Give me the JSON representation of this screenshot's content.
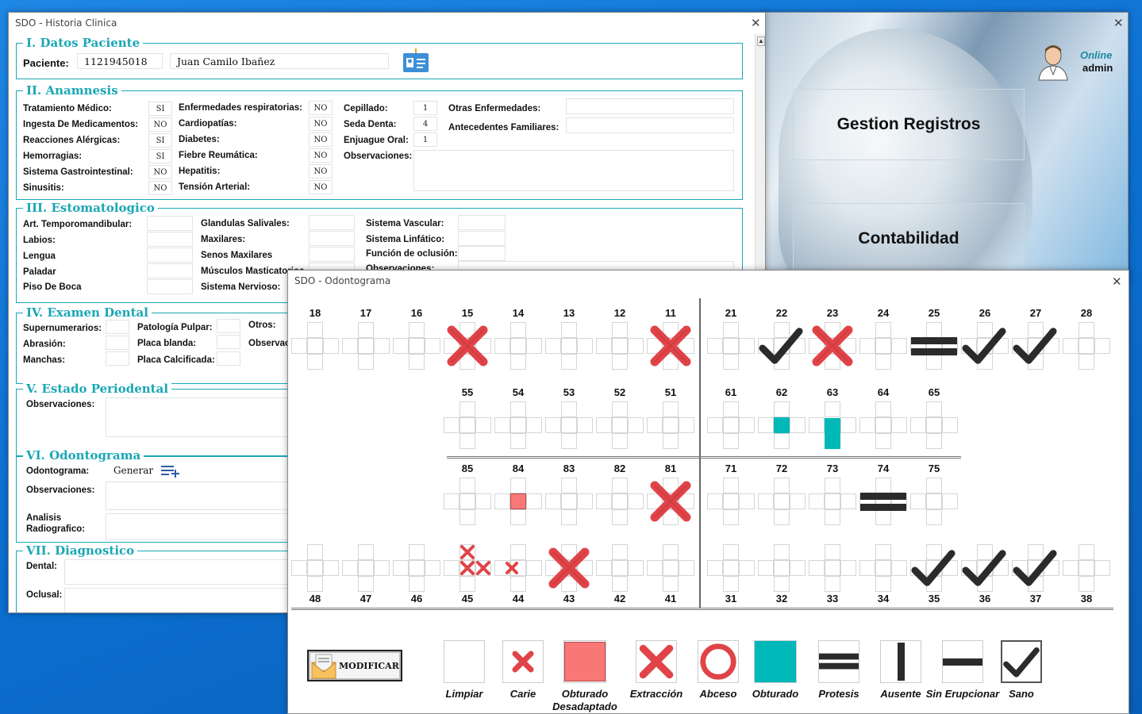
{
  "menu_window": {
    "close": "✕",
    "buttons": [
      "Gestion Registros",
      "Contabilidad"
    ],
    "status": "Online",
    "user": "admin"
  },
  "historia": {
    "title": "SDO - Historia Clinica",
    "close": "✕",
    "datos": {
      "legend": "I. Datos Paciente",
      "paciente_label": "Paciente:",
      "paciente_id": "1121945018",
      "paciente_nombre": "Juan Camilo Ibañez"
    },
    "anamnesis": {
      "legend": "II. Anamnesis",
      "col1": [
        {
          "label": "Tratamiento Médico:",
          "value": "SI"
        },
        {
          "label": "Ingesta De Medicamentos:",
          "value": "NO"
        },
        {
          "label": "Reacciones Alérgicas:",
          "value": "SI"
        },
        {
          "label": "Hemorragias:",
          "value": "SI"
        },
        {
          "label": "Sistema Gastrointestinal:",
          "value": "NO"
        },
        {
          "label": "Sinusitis:",
          "value": "NO"
        }
      ],
      "col2": [
        {
          "label": "Enfermedades respiratorias:",
          "value": "NO"
        },
        {
          "label": "Cardiopatías:",
          "value": "NO"
        },
        {
          "label": "Diabetes:",
          "value": "NO"
        },
        {
          "label": "Fiebre Reumática:",
          "value": "NO"
        },
        {
          "label": "Hepatitis:",
          "value": "NO"
        },
        {
          "label": "Tensión Arterial:",
          "value": "NO"
        }
      ],
      "col3": [
        {
          "label": "Cepillado:",
          "value": "1"
        },
        {
          "label": "Seda Denta:",
          "value": "4"
        },
        {
          "label": "Enjuague Oral:",
          "value": "1"
        }
      ],
      "observaciones": "Observaciones:",
      "otras": "Otras Enfermedades:",
      "antecedentes": "Antecedentes Familiares:"
    },
    "estomatologico": {
      "legend": "III. Estomatologico",
      "col1": [
        "Art. Temporomandibular:",
        "Labios:",
        "Lengua",
        "Paladar",
        "Piso De Boca"
      ],
      "col2": [
        "Glandulas Salivales:",
        "Maxilares:",
        "Senos Maxilares",
        "Músculos Masticatorios",
        "Sistema Nervioso:"
      ],
      "col3": [
        "Sistema Vascular:",
        "Sistema Linfático:",
        "Función de oclusión:",
        "Observaciones:"
      ]
    },
    "examen": {
      "legend": "IV. Examen Dental",
      "col1": [
        "Supernumerarios:",
        "Abrasión:",
        "Manchas:"
      ],
      "col2": [
        "Patología Pulpar:",
        "Placa blanda:",
        "Placa Calcificada:"
      ],
      "otros": "Otros:",
      "observ": "Observaciones:"
    },
    "periodental": {
      "legend": "V. Estado Periodental",
      "obs": "Observaciones:"
    },
    "odontograma": {
      "legend": "VI. Odontograma",
      "label": "Odontograma:",
      "generar": "Generar",
      "obs": "Observaciones:",
      "analisis1": "Analisis",
      "analisis2": "Radiografico:"
    },
    "diagnostico": {
      "legend": "VII. Diagnostico",
      "dental": "Dental:",
      "oclusal": "Oclusal:"
    }
  },
  "odontograma": {
    "title": "SDO - Odontograma",
    "close": "✕",
    "row1": [
      "18",
      "17",
      "16",
      "15",
      "14",
      "13",
      "12",
      "11",
      "21",
      "22",
      "23",
      "24",
      "25",
      "26",
      "27",
      "28"
    ],
    "row2": [
      "55",
      "54",
      "53",
      "52",
      "51",
      "61",
      "62",
      "63",
      "64",
      "65"
    ],
    "row3": [
      "85",
      "84",
      "83",
      "82",
      "81",
      "71",
      "72",
      "73",
      "74",
      "75"
    ],
    "row4": [
      "48",
      "47",
      "46",
      "45",
      "44",
      "43",
      "42",
      "41",
      "31",
      "32",
      "33",
      "34",
      "35",
      "36",
      "37",
      "38"
    ],
    "marks": {
      "15": "extraccion",
      "11": "extraccion",
      "22": "sano",
      "23": "extraccion",
      "25": "protesis",
      "26": "sano",
      "27": "sano",
      "62": "obturado-center",
      "63": "obturado-center-bottom",
      "84": "desadaptado-center",
      "81": "extraccion",
      "74": "protesis",
      "45": "caries-multi",
      "44": "caries-right",
      "43": "extraccion",
      "35": "sano",
      "36": "sano",
      "37": "sano"
    },
    "colors": {
      "red": "#e04448",
      "teal": "#00b8b8",
      "pink": "#f87878",
      "dark": "#2b2b2b"
    },
    "modificar": "MODIFICAR",
    "legend": [
      {
        "key": "limpiar",
        "label": "Limpiar"
      },
      {
        "key": "carie",
        "label": "Carie"
      },
      {
        "key": "desadaptado",
        "label": "Obturado Desadaptado"
      },
      {
        "key": "extraccion",
        "label": "Extracción"
      },
      {
        "key": "abceso",
        "label": "Abceso"
      },
      {
        "key": "obturado",
        "label": "Obturado"
      },
      {
        "key": "protesis",
        "label": "Protesis"
      },
      {
        "key": "ausente",
        "label": "Ausente"
      },
      {
        "key": "sin",
        "label": "Sin Erupcionar"
      },
      {
        "key": "sano",
        "label": "Sano"
      }
    ]
  }
}
